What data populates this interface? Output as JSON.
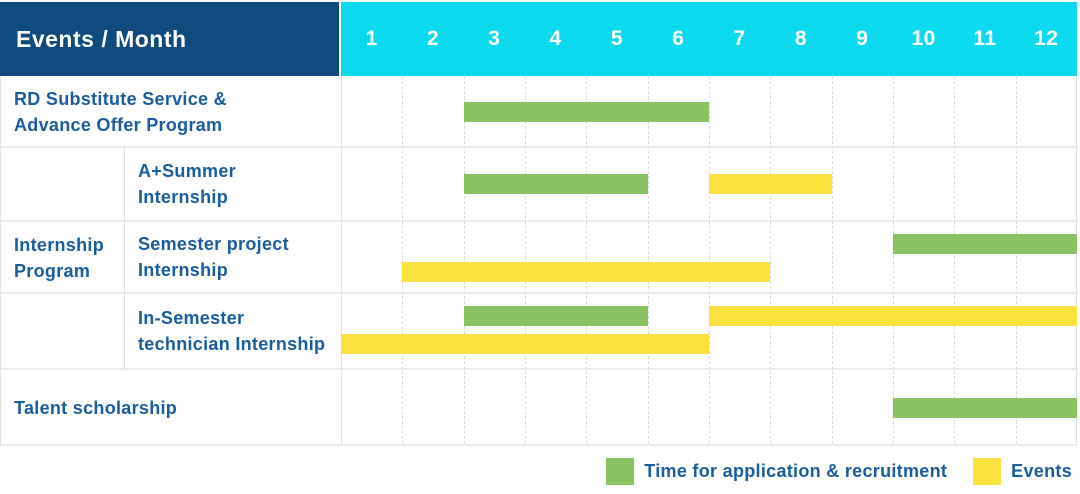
{
  "header": {
    "corner_label": "Events / Month",
    "months": [
      "1",
      "2",
      "3",
      "4",
      "5",
      "6",
      "7",
      "8",
      "9",
      "10",
      "11",
      "12"
    ]
  },
  "group_label": {
    "lines": [
      "Internship",
      "Program"
    ]
  },
  "legend": {
    "items": [
      {
        "key": "recruitment",
        "label": "Time for application & recruitment",
        "color": "#89c361"
      },
      {
        "key": "event",
        "label": "Events",
        "color": "#fce23e"
      }
    ]
  },
  "colors": {
    "header_bg": "#0e4a7d",
    "months_bg": "#0bd9ee",
    "header_text": "#ffffff",
    "label_text": "#1a5c9e",
    "recruitment": "#89c361",
    "event": "#fce23e"
  },
  "chart_data": {
    "type": "gantt",
    "title": "Events / Month",
    "x_label": "Month",
    "x_ticks": [
      "1",
      "2",
      "3",
      "4",
      "5",
      "6",
      "7",
      "8",
      "9",
      "10",
      "11",
      "12"
    ],
    "x_range": [
      1,
      12
    ],
    "legend": [
      {
        "category": "recruitment",
        "label": "Time for application & recruitment",
        "color": "#89c361"
      },
      {
        "category": "event",
        "label": "Events",
        "color": "#fce23e"
      }
    ],
    "tasks": [
      {
        "label": "RD Substitute Service & Advance Offer Program",
        "label_lines": [
          "RD Substitute Service &",
          "Advance Offer Program"
        ],
        "group": null,
        "bars": [
          {
            "category": "recruitment",
            "start_month": 3,
            "end_month": 6,
            "lane": "middle"
          }
        ]
      },
      {
        "label": "A+Summer Internship",
        "label_lines": [
          "A+Summer",
          "Internship"
        ],
        "group": "Internship Program",
        "bars": [
          {
            "category": "recruitment",
            "start_month": 3,
            "end_month": 5,
            "lane": "middle"
          },
          {
            "category": "event",
            "start_month": 7,
            "end_month": 8,
            "lane": "middle"
          }
        ]
      },
      {
        "label": "Semester project Internship",
        "label_lines": [
          "Semester project",
          "Internship"
        ],
        "group": "Internship Program",
        "bars": [
          {
            "category": "recruitment",
            "start_month": 10,
            "end_month": 12,
            "lane": "upper"
          },
          {
            "category": "event",
            "start_month": 2,
            "end_month": 7,
            "lane": "lower"
          }
        ]
      },
      {
        "label": "In-Semester technician Internship",
        "label_lines": [
          "In-Semester",
          "technician Internship"
        ],
        "group": "Internship Program",
        "bars": [
          {
            "category": "recruitment",
            "start_month": 3,
            "end_month": 5,
            "lane": "upper"
          },
          {
            "category": "event",
            "start_month": 7,
            "end_month": 12,
            "lane": "upper"
          },
          {
            "category": "event",
            "start_month": 1,
            "end_month": 6,
            "lane": "lower"
          }
        ]
      },
      {
        "label": "Talent scholarship",
        "label_lines": [
          "Talent scholarship"
        ],
        "group": null,
        "bars": [
          {
            "category": "recruitment",
            "start_month": 10,
            "end_month": 12,
            "lane": "middle"
          }
        ]
      }
    ]
  }
}
